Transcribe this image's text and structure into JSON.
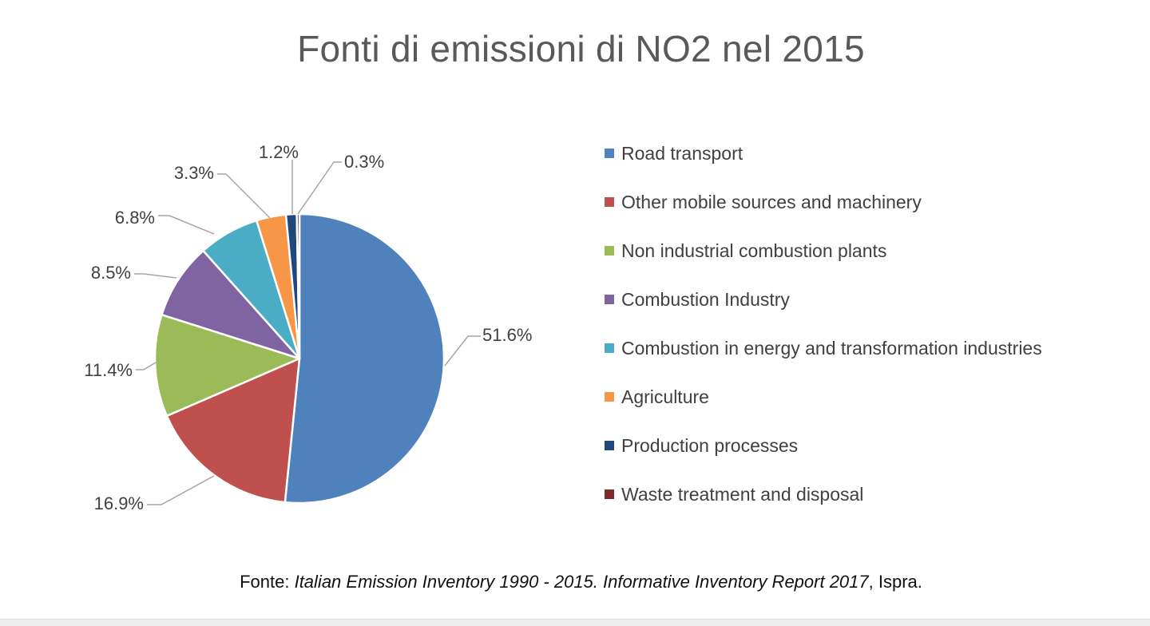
{
  "chart_data": {
    "type": "pie",
    "title": "Fonti di emissioni di NO2 nel 2015",
    "slices": [
      {
        "label": "Road transport",
        "value": 51.6,
        "display": "51.6%",
        "color": "#4f81bd"
      },
      {
        "label": "Other mobile sources and machinery",
        "value": 16.9,
        "display": "16.9%",
        "color": "#c0504d"
      },
      {
        "label": "Non industrial combustion plants",
        "value": 11.4,
        "display": "11.4%",
        "color": "#9bbb59"
      },
      {
        "label": "Combustion Industry",
        "value": 8.5,
        "display": "8.5%",
        "color": "#8064a2"
      },
      {
        "label": "Combustion in energy and transformation industries",
        "value": 6.8,
        "display": "6.8%",
        "color": "#4bacc6"
      },
      {
        "label": "Agriculture",
        "value": 3.3,
        "display": "3.3%",
        "color": "#f79646"
      },
      {
        "label": "Production processes",
        "value": 1.2,
        "display": "1.2%",
        "color": "#1f497d"
      },
      {
        "label": "Waste treatment and disposal",
        "value": 0.3,
        "display": "0.3%",
        "color": "#7b2c2a"
      }
    ],
    "legend_position": "right"
  },
  "source": {
    "prefix": "Fonte: ",
    "italic": "Italian Emission Inventory 1990 - 2015. Informative Inventory Report 2017",
    "suffix": ", Ispra."
  }
}
